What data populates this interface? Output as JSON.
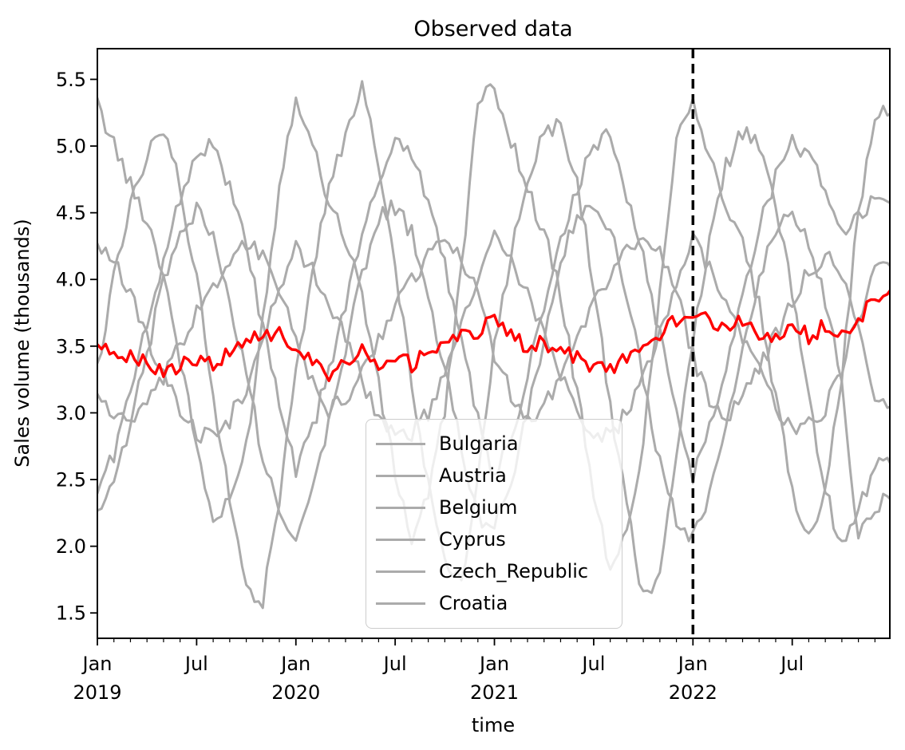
{
  "figure": {
    "title": "Observed data",
    "xlabel": "time",
    "ylabel": "Sales volume (thousands)"
  },
  "chart_data": {
    "type": "line",
    "title": "Observed data",
    "xlabel": "time",
    "ylabel": "Sales volume (thousands)",
    "x_domain": [
      "Jan 2019",
      "Dec 2022"
    ],
    "ylim": [
      1.31,
      5.73
    ],
    "grid": false,
    "y_ticks": [
      "1.5",
      "2.0",
      "2.5",
      "3.0",
      "3.5",
      "4.0",
      "4.5",
      "5.0",
      "5.5"
    ],
    "x_ticks": [
      {
        "month": 0,
        "line1": "Jan",
        "line2": "2019"
      },
      {
        "month": 6,
        "line1": "Jul",
        "line2": ""
      },
      {
        "month": 12,
        "line1": "Jan",
        "line2": "2020"
      },
      {
        "month": 18,
        "line1": "Jul",
        "line2": ""
      },
      {
        "month": 24,
        "line1": "Jan",
        "line2": "2021"
      },
      {
        "month": 30,
        "line1": "Jul",
        "line2": ""
      },
      {
        "month": 36,
        "line1": "Jan",
        "line2": "2022"
      },
      {
        "month": 42,
        "line1": "Jul",
        "line2": ""
      }
    ],
    "x_minor_ticks_every_month": true,
    "vline": {
      "month": 36,
      "color": "#000000",
      "width": 3.5,
      "dash": [
        12,
        7
      ],
      "at_tick": "Jan 2022"
    },
    "legend": {
      "position": "lower-center-left",
      "entries": [
        {
          "label": "Bulgaria",
          "color": "#ababab"
        },
        {
          "label": "Austria",
          "color": "#ababab"
        },
        {
          "label": "Belgium",
          "color": "#ababab"
        },
        {
          "label": "Cyprus",
          "color": "#ababab"
        },
        {
          "label": "Czech_Republic",
          "color": "#ababab"
        },
        {
          "label": "Croatia",
          "color": "#ababab"
        }
      ]
    },
    "sampling": "monthly anchors Jan 2019 .. Dec 2022 (values in thousands, estimated from plot)",
    "points_per_month": 4,
    "series": [
      {
        "name": "Bulgaria",
        "color": "#ababab",
        "width": 3,
        "noise": 0.07,
        "in_legend": true,
        "values": [
          5.3,
          5.02,
          4.7,
          4.45,
          4.05,
          3.4,
          2.75,
          2.18,
          2.32,
          2.75,
          3.7,
          4.7,
          5.4,
          5.0,
          4.6,
          4.3,
          3.9,
          3.2,
          2.55,
          2.05,
          2.4,
          3.0,
          4.1,
          5.3,
          5.45,
          5.05,
          4.68,
          4.35,
          3.88,
          3.15,
          2.42,
          1.78,
          2.1,
          2.8,
          3.9,
          5.1,
          5.35,
          4.92,
          4.55,
          4.25,
          3.8,
          3.1,
          2.42,
          2.05,
          2.45,
          3.3,
          4.5,
          5.2,
          5.27
        ]
      },
      {
        "name": "Austria",
        "color": "#ababab",
        "width": 3,
        "noise": 0.07,
        "in_legend": true,
        "values": [
          2.42,
          2.7,
          3.15,
          3.65,
          4.18,
          4.6,
          4.95,
          5.02,
          4.68,
          4.25,
          3.65,
          3.05,
          2.55,
          2.88,
          3.32,
          3.82,
          4.32,
          4.72,
          5.08,
          4.95,
          4.58,
          4.12,
          3.52,
          2.98,
          2.48,
          2.82,
          3.28,
          3.78,
          4.28,
          4.68,
          5.0,
          5.08,
          4.62,
          4.18,
          3.58,
          3.02,
          2.52,
          2.9,
          3.38,
          3.88,
          4.38,
          4.78,
          5.02,
          4.95,
          4.65,
          4.35,
          4.5,
          4.58,
          4.55
        ]
      },
      {
        "name": "Belgium",
        "color": "#ababab",
        "width": 3,
        "noise": 0.07,
        "in_legend": true,
        "values": [
          3.15,
          2.98,
          2.92,
          3.05,
          3.25,
          3.5,
          3.75,
          3.95,
          4.15,
          4.28,
          4.18,
          3.92,
          3.52,
          3.22,
          3.02,
          3.1,
          3.3,
          3.55,
          3.8,
          4.0,
          4.18,
          4.3,
          4.15,
          3.88,
          3.45,
          3.15,
          2.95,
          3.06,
          3.28,
          3.55,
          3.82,
          4.05,
          4.22,
          4.32,
          4.18,
          3.9,
          3.42,
          3.12,
          2.98,
          3.1,
          3.32,
          3.58,
          3.85,
          4.05,
          4.18,
          4.05,
          3.6,
          3.15,
          3.05
        ]
      },
      {
        "name": "Cyprus",
        "color": "#ababab",
        "width": 3,
        "noise": 0.07,
        "in_legend": true,
        "values": [
          3.35,
          4.0,
          4.58,
          4.95,
          5.12,
          4.7,
          4.0,
          3.15,
          2.35,
          1.72,
          1.58,
          2.35,
          3.3,
          4.08,
          4.68,
          5.05,
          5.45,
          4.88,
          4.08,
          3.25,
          2.45,
          1.88,
          1.72,
          2.55,
          3.48,
          4.18,
          4.78,
          5.08,
          5.18,
          4.72,
          3.98,
          3.05,
          2.28,
          1.62,
          1.78,
          2.65,
          3.58,
          4.28,
          4.85,
          5.12,
          5.02,
          4.58,
          3.88,
          3.08,
          2.42,
          1.98,
          2.25,
          2.6,
          2.62
        ]
      },
      {
        "name": "Czech_Republic",
        "color": "#ababab",
        "width": 3,
        "noise": 0.07,
        "in_legend": true,
        "values": [
          4.28,
          4.12,
          3.88,
          3.58,
          3.28,
          3.02,
          2.85,
          2.8,
          2.95,
          3.2,
          3.55,
          3.95,
          4.22,
          4.08,
          3.85,
          3.55,
          3.25,
          2.98,
          2.82,
          2.85,
          3.0,
          3.28,
          3.62,
          4.02,
          4.32,
          4.12,
          3.88,
          3.58,
          3.28,
          3.0,
          2.85,
          2.82,
          3.0,
          3.25,
          3.6,
          4.0,
          4.28,
          4.08,
          3.85,
          3.55,
          3.3,
          3.05,
          2.85,
          2.9,
          3.05,
          3.35,
          3.72,
          4.05,
          4.1
        ]
      },
      {
        "name": "Croatia",
        "color": "#ababab",
        "width": 3,
        "noise": 0.07,
        "in_legend": true,
        "values": [
          2.2,
          2.45,
          2.9,
          3.45,
          4.0,
          4.4,
          4.52,
          4.3,
          3.85,
          3.28,
          2.68,
          2.28,
          2.1,
          2.4,
          2.95,
          3.5,
          4.05,
          4.45,
          4.55,
          4.35,
          3.88,
          3.32,
          2.72,
          2.22,
          2.15,
          2.5,
          3.0,
          3.55,
          4.1,
          4.5,
          4.58,
          4.38,
          3.88,
          3.28,
          2.62,
          2.18,
          2.05,
          2.35,
          2.9,
          3.45,
          4.0,
          4.4,
          4.5,
          4.3,
          3.85,
          3.25,
          2.05,
          2.3,
          2.42
        ]
      },
      {
        "name": "",
        "color": "#ff0000",
        "width": 3.4,
        "noise": 0.065,
        "in_legend": false,
        "values": [
          3.55,
          3.48,
          3.42,
          3.36,
          3.28,
          3.35,
          3.42,
          3.35,
          3.48,
          3.56,
          3.62,
          3.58,
          3.5,
          3.38,
          3.3,
          3.38,
          3.45,
          3.35,
          3.4,
          3.36,
          3.46,
          3.52,
          3.56,
          3.62,
          3.7,
          3.58,
          3.5,
          3.54,
          3.46,
          3.4,
          3.36,
          3.32,
          3.44,
          3.52,
          3.58,
          3.7,
          3.76,
          3.7,
          3.64,
          3.68,
          3.6,
          3.55,
          3.62,
          3.58,
          3.66,
          3.6,
          3.72,
          3.82,
          3.92
        ]
      }
    ]
  },
  "style_colors": {
    "spine": "#000000",
    "gray_line": "#ababab",
    "highlight_line": "#ff0000",
    "legend_border": "#cccccc"
  }
}
